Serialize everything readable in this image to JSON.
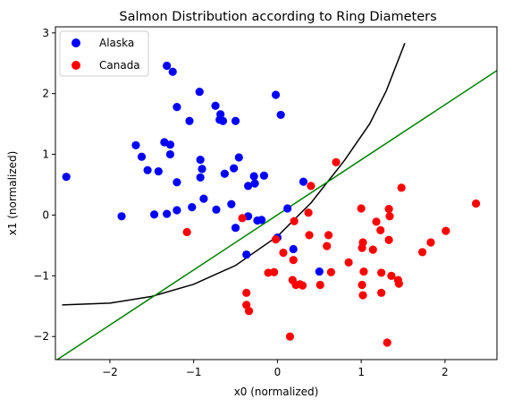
{
  "chart_data": {
    "type": "scatter",
    "title": "Salmon Distribution according to Ring Diameters",
    "xlabel": "x0 (normalized)",
    "ylabel": "x1 (normalized)",
    "xlim": [
      -2.65,
      2.62
    ],
    "ylim": [
      -2.38,
      3.1
    ],
    "xticks": [
      -2,
      -1,
      0,
      1,
      2
    ],
    "yticks": [
      -2,
      -1,
      0,
      1,
      2,
      3
    ],
    "grid": false,
    "legend_position": "top-left",
    "series": [
      {
        "name": "Alaska",
        "color": "#0000ff",
        "points": [
          [
            -2.52,
            0.63
          ],
          [
            -1.32,
            2.46
          ],
          [
            -1.25,
            2.36
          ],
          [
            -0.93,
            2.03
          ],
          [
            -0.02,
            1.98
          ],
          [
            -1.2,
            1.78
          ],
          [
            -0.74,
            1.8
          ],
          [
            -1.05,
            1.55
          ],
          [
            -0.68,
            1.66
          ],
          [
            -0.69,
            1.57
          ],
          [
            -0.65,
            1.55
          ],
          [
            -0.5,
            1.55
          ],
          [
            0.04,
            1.65
          ],
          [
            -1.69,
            1.15
          ],
          [
            -1.35,
            1.2
          ],
          [
            -1.28,
            1.16
          ],
          [
            -1.62,
            0.96
          ],
          [
            -1.28,
            1.0
          ],
          [
            -0.92,
            0.91
          ],
          [
            -0.46,
            0.95
          ],
          [
            -1.55,
            0.74
          ],
          [
            -1.42,
            0.72
          ],
          [
            -0.9,
            0.76
          ],
          [
            -0.92,
            0.62
          ],
          [
            -0.63,
            0.68
          ],
          [
            -0.52,
            0.77
          ],
          [
            -0.28,
            0.64
          ],
          [
            -0.35,
            0.48
          ],
          [
            -0.27,
            0.52
          ],
          [
            -0.16,
            0.65
          ],
          [
            -1.2,
            0.54
          ],
          [
            -0.88,
            0.27
          ],
          [
            -1.47,
            0.01
          ],
          [
            -1.32,
            0.02
          ],
          [
            -1.2,
            0.08
          ],
          [
            -1.02,
            0.13
          ],
          [
            -0.73,
            0.09
          ],
          [
            -0.55,
            0.18
          ],
          [
            -0.35,
            -0.02
          ],
          [
            -0.19,
            -0.08
          ],
          [
            -0.24,
            -0.09
          ],
          [
            -0.5,
            -0.21
          ],
          [
            -1.86,
            -0.02
          ],
          [
            0.12,
            0.11
          ],
          [
            0.31,
            0.55
          ],
          [
            0.0,
            -0.37
          ],
          [
            0.19,
            -0.56
          ],
          [
            -0.37,
            -0.65
          ],
          [
            0.5,
            -0.93
          ]
        ]
      },
      {
        "name": "Canada",
        "color": "#ff0000",
        "points": [
          [
            0.7,
            0.87
          ],
          [
            0.4,
            0.48
          ],
          [
            1.48,
            0.45
          ],
          [
            2.37,
            0.19
          ],
          [
            1.0,
            0.11
          ],
          [
            1.33,
            0.1
          ],
          [
            1.34,
            -0.02
          ],
          [
            1.18,
            -0.11
          ],
          [
            0.2,
            -0.1
          ],
          [
            0.37,
            0.04
          ],
          [
            2.01,
            -0.26
          ],
          [
            1.23,
            -0.25
          ],
          [
            0.38,
            -0.33
          ],
          [
            -0.02,
            -0.4
          ],
          [
            0.61,
            -0.33
          ],
          [
            0.59,
            -0.51
          ],
          [
            1.02,
            -0.45
          ],
          [
            1.33,
            -0.41
          ],
          [
            1.83,
            -0.45
          ],
          [
            1.01,
            -0.54
          ],
          [
            1.14,
            -0.57
          ],
          [
            0.07,
            -0.62
          ],
          [
            0.19,
            -0.74
          ],
          [
            -0.11,
            -0.95
          ],
          [
            -0.04,
            -0.94
          ],
          [
            0.64,
            -0.94
          ],
          [
            0.85,
            -0.78
          ],
          [
            1.03,
            -0.93
          ],
          [
            1.24,
            -0.95
          ],
          [
            1.36,
            -1.0
          ],
          [
            1.44,
            -1.07
          ],
          [
            1.73,
            -0.61
          ],
          [
            -0.42,
            -0.05
          ],
          [
            -1.08,
            -0.28
          ],
          [
            0.18,
            -1.07
          ],
          [
            0.22,
            -1.15
          ],
          [
            0.3,
            -1.16
          ],
          [
            0.27,
            -1.14
          ],
          [
            0.51,
            -1.15
          ],
          [
            1.01,
            -1.15
          ],
          [
            1.45,
            -1.13
          ],
          [
            -0.37,
            -1.28
          ],
          [
            1.02,
            -1.32
          ],
          [
            1.24,
            -1.28
          ],
          [
            -0.37,
            -1.48
          ],
          [
            -0.34,
            -1.58
          ],
          [
            0.15,
            -2.0
          ],
          [
            1.31,
            -2.1
          ]
        ]
      },
      {
        "name": "",
        "style": "line",
        "color": "#000000",
        "points": [
          [
            -2.57,
            -1.48
          ],
          [
            -2.0,
            -1.45
          ],
          [
            -1.5,
            -1.34
          ],
          [
            -1.0,
            -1.14
          ],
          [
            -0.5,
            -0.83
          ],
          [
            0.0,
            -0.35
          ],
          [
            0.4,
            0.2
          ],
          [
            0.8,
            0.9
          ],
          [
            1.1,
            1.5
          ],
          [
            1.3,
            2.05
          ],
          [
            1.52,
            2.83
          ]
        ]
      },
      {
        "name": "",
        "style": "line",
        "color": "#008000",
        "points": [
          [
            -2.65,
            -2.4
          ],
          [
            2.62,
            2.38
          ]
        ]
      }
    ]
  }
}
